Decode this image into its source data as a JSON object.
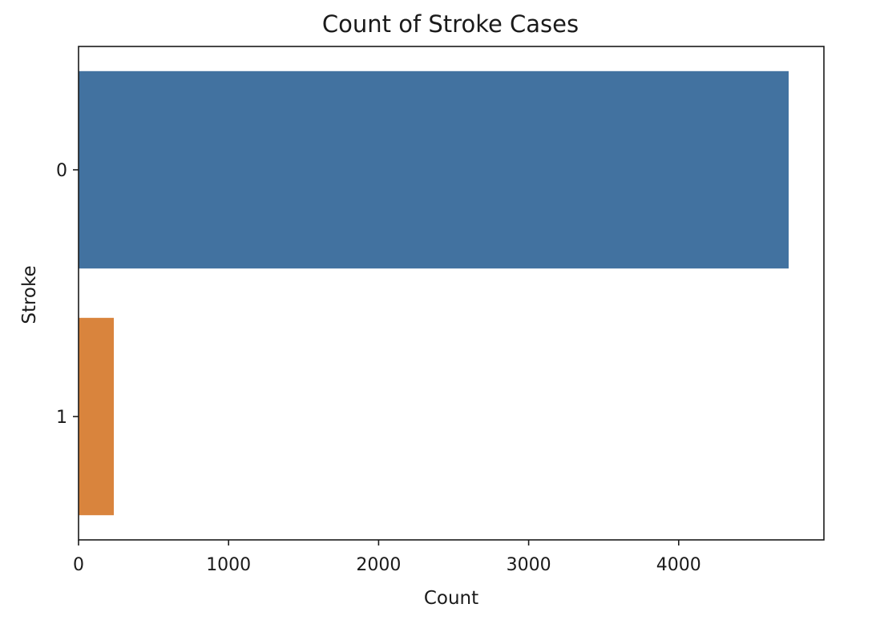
{
  "chart_data": {
    "type": "bar",
    "orientation": "horizontal",
    "title": "Count of Stroke Cases",
    "xlabel": "Count",
    "ylabel": "Stroke",
    "categories": [
      "0",
      "1"
    ],
    "values": [
      4733,
      235
    ],
    "colors": [
      "#4272a0",
      "#d9843d"
    ],
    "xlim": [
      0,
      4968
    ],
    "xticks": [
      0,
      1000,
      2000,
      3000,
      4000
    ],
    "xtick_labels": [
      "0",
      "1000",
      "2000",
      "3000",
      "4000"
    ],
    "grid": false,
    "legend": "none"
  }
}
